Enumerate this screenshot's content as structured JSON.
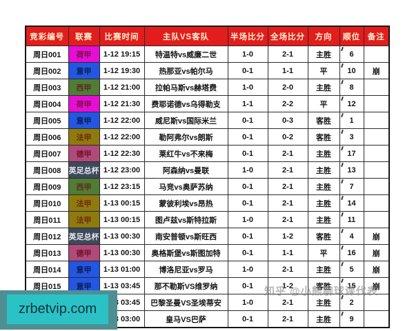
{
  "page": {
    "watermark": "知乎 @小熊聊球课代表",
    "promo": {
      "text": "zrbetvip.com"
    }
  },
  "colors": {
    "header_bg": "#E31D1D",
    "header_fg": "#FFF3CF",
    "promo_bg": "#2BC2C6",
    "promo_shadow": "#4E8F94",
    "promo_text": "#14333D",
    "watermark": "#8A8A8A"
  },
  "league_colors": {
    "荷甲": {
      "bg": "#E60DD5",
      "fg": "#7B1040"
    },
    "意甲": {
      "bg": "#2356E3",
      "fg": "#0B1E52"
    },
    "西甲": {
      "bg": "#507C35",
      "fg": "#5C2B20"
    },
    "法甲": {
      "bg": "#8F7A0E",
      "fg": "#6E2B10"
    },
    "德甲": {
      "bg": "#B04A78",
      "fg": "#701230"
    },
    "英足总杯": {
      "bg": "#3C4A5C",
      "fg": "#E8E8E8"
    },
    "西超杯": {
      "bg": "#1F5F58",
      "fg": "#D8E8E0"
    }
  },
  "table": {
    "headers": [
      "竞彩编号",
      "联赛",
      "比赛时间",
      "主队VS客队",
      "半场比分",
      "全场比分",
      "方向",
      "顺位",
      "备注"
    ],
    "rows": [
      {
        "id": "周日001",
        "league": "荷甲",
        "time": "1-12 19:15",
        "teams": "特温特vs威廉二世",
        "half": "1-0",
        "full": "2-1",
        "direction": "主胜",
        "rank": "6",
        "note": ""
      },
      {
        "id": "周日002",
        "league": "意甲",
        "time": "1-12 19:30",
        "teams": "热那亚vs帕尔马",
        "half": "0-1",
        "full": "1-1",
        "direction": "平",
        "rank": "10",
        "note": "崩"
      },
      {
        "id": "周日003",
        "league": "西甲",
        "time": "1-12 21:00",
        "teams": "拉帕马斯vs赫塔费",
        "half": "1-0",
        "full": "2-0",
        "direction": "主胜",
        "rank": "8",
        "note": ""
      },
      {
        "id": "周日004",
        "league": "荷甲",
        "time": "1-12 21:30",
        "teams": "费耶诺德vs乌得勒支",
        "half": "1-1",
        "full": "2-2",
        "direction": "平",
        "rank": "12",
        "note": ""
      },
      {
        "id": "周日005",
        "league": "意甲",
        "time": "1-12 22:00",
        "teams": "威尼斯vs国际米兰",
        "half": "0-1",
        "full": "0-3",
        "direction": "客胜",
        "rank": "1",
        "note": ""
      },
      {
        "id": "周日006",
        "league": "法甲",
        "time": "1-12 22:00",
        "teams": "勒阿弗尔vs朗斯",
        "half": "0-1",
        "full": "0-2",
        "direction": "客胜",
        "rank": "3",
        "note": ""
      },
      {
        "id": "周日007",
        "league": "德甲",
        "time": "1-12 22:30",
        "teams": "莱红牛vs不来梅",
        "half": "0-1",
        "full": "2-1",
        "direction": "主胜",
        "rank": "17",
        "note": ""
      },
      {
        "id": "周日008",
        "league": "英足总杯",
        "time": "1-12 23:00",
        "teams": "阿森纳vs曼联",
        "half": "1-0",
        "full": "2-1",
        "direction": "主胜",
        "rank": "13",
        "note": ""
      },
      {
        "id": "周日009",
        "league": "西甲",
        "time": "1-12 23:15",
        "teams": "马竞vs奥萨苏纳",
        "half": "0-1",
        "full": "2-1",
        "direction": "主胜",
        "rank": "7",
        "note": ""
      },
      {
        "id": "周日010",
        "league": "法甲",
        "time": "1-13 00:15",
        "teams": "蒙彼利埃vs昂热",
        "half": "0-1",
        "full": "2-1",
        "direction": "主胜",
        "rank": "14",
        "note": ""
      },
      {
        "id": "周日011",
        "league": "法甲",
        "time": "1-13 00:15",
        "teams": "图卢兹vs斯特拉斯",
        "half": "1-0",
        "full": "2-1",
        "direction": "主胜",
        "rank": "11",
        "note": ""
      },
      {
        "id": "周日012",
        "league": "英足总杯",
        "time": "1-13 00:30",
        "teams": "南安普顿vs斯旺西",
        "half": "0-1",
        "full": "1-2",
        "direction": "客胜",
        "rank": "4",
        "note": "崩"
      },
      {
        "id": "周日013",
        "league": "德甲",
        "time": "1-13 00:30",
        "teams": "奥格斯堡vs斯图加特",
        "half": "0-1",
        "full": "1-1",
        "direction": "平",
        "rank": "16",
        "note": "崩"
      },
      {
        "id": "周日014",
        "league": "意甲",
        "time": "1-13 01:00",
        "teams": "博洛尼亚vs罗马",
        "half": "1-0",
        "full": "2-1",
        "direction": "主胜",
        "rank": "5",
        "note": "崩"
      },
      {
        "id": "周日015",
        "league": "意甲",
        "time": "1-13 03:45",
        "teams": "那不勒斯VS维罗纳",
        "half": "0-1",
        "full": "1-2",
        "direction": "客胜",
        "rank": "15",
        "note": "崩"
      },
      {
        "id": "周日016",
        "league": "法甲",
        "time": "1-13 03:45",
        "teams": "巴黎圣曼VS圣埃蒂安",
        "half": "1-0",
        "full": "2-1",
        "direction": "主胜",
        "rank": "2",
        "note": ""
      },
      {
        "id": "周日017",
        "league": "西超杯",
        "time": "1-13 03:00",
        "teams": "皇马VS巴萨",
        "half": "0-1",
        "full": "2-1",
        "direction": "主胜",
        "rank": "9",
        "note": ""
      }
    ]
  }
}
